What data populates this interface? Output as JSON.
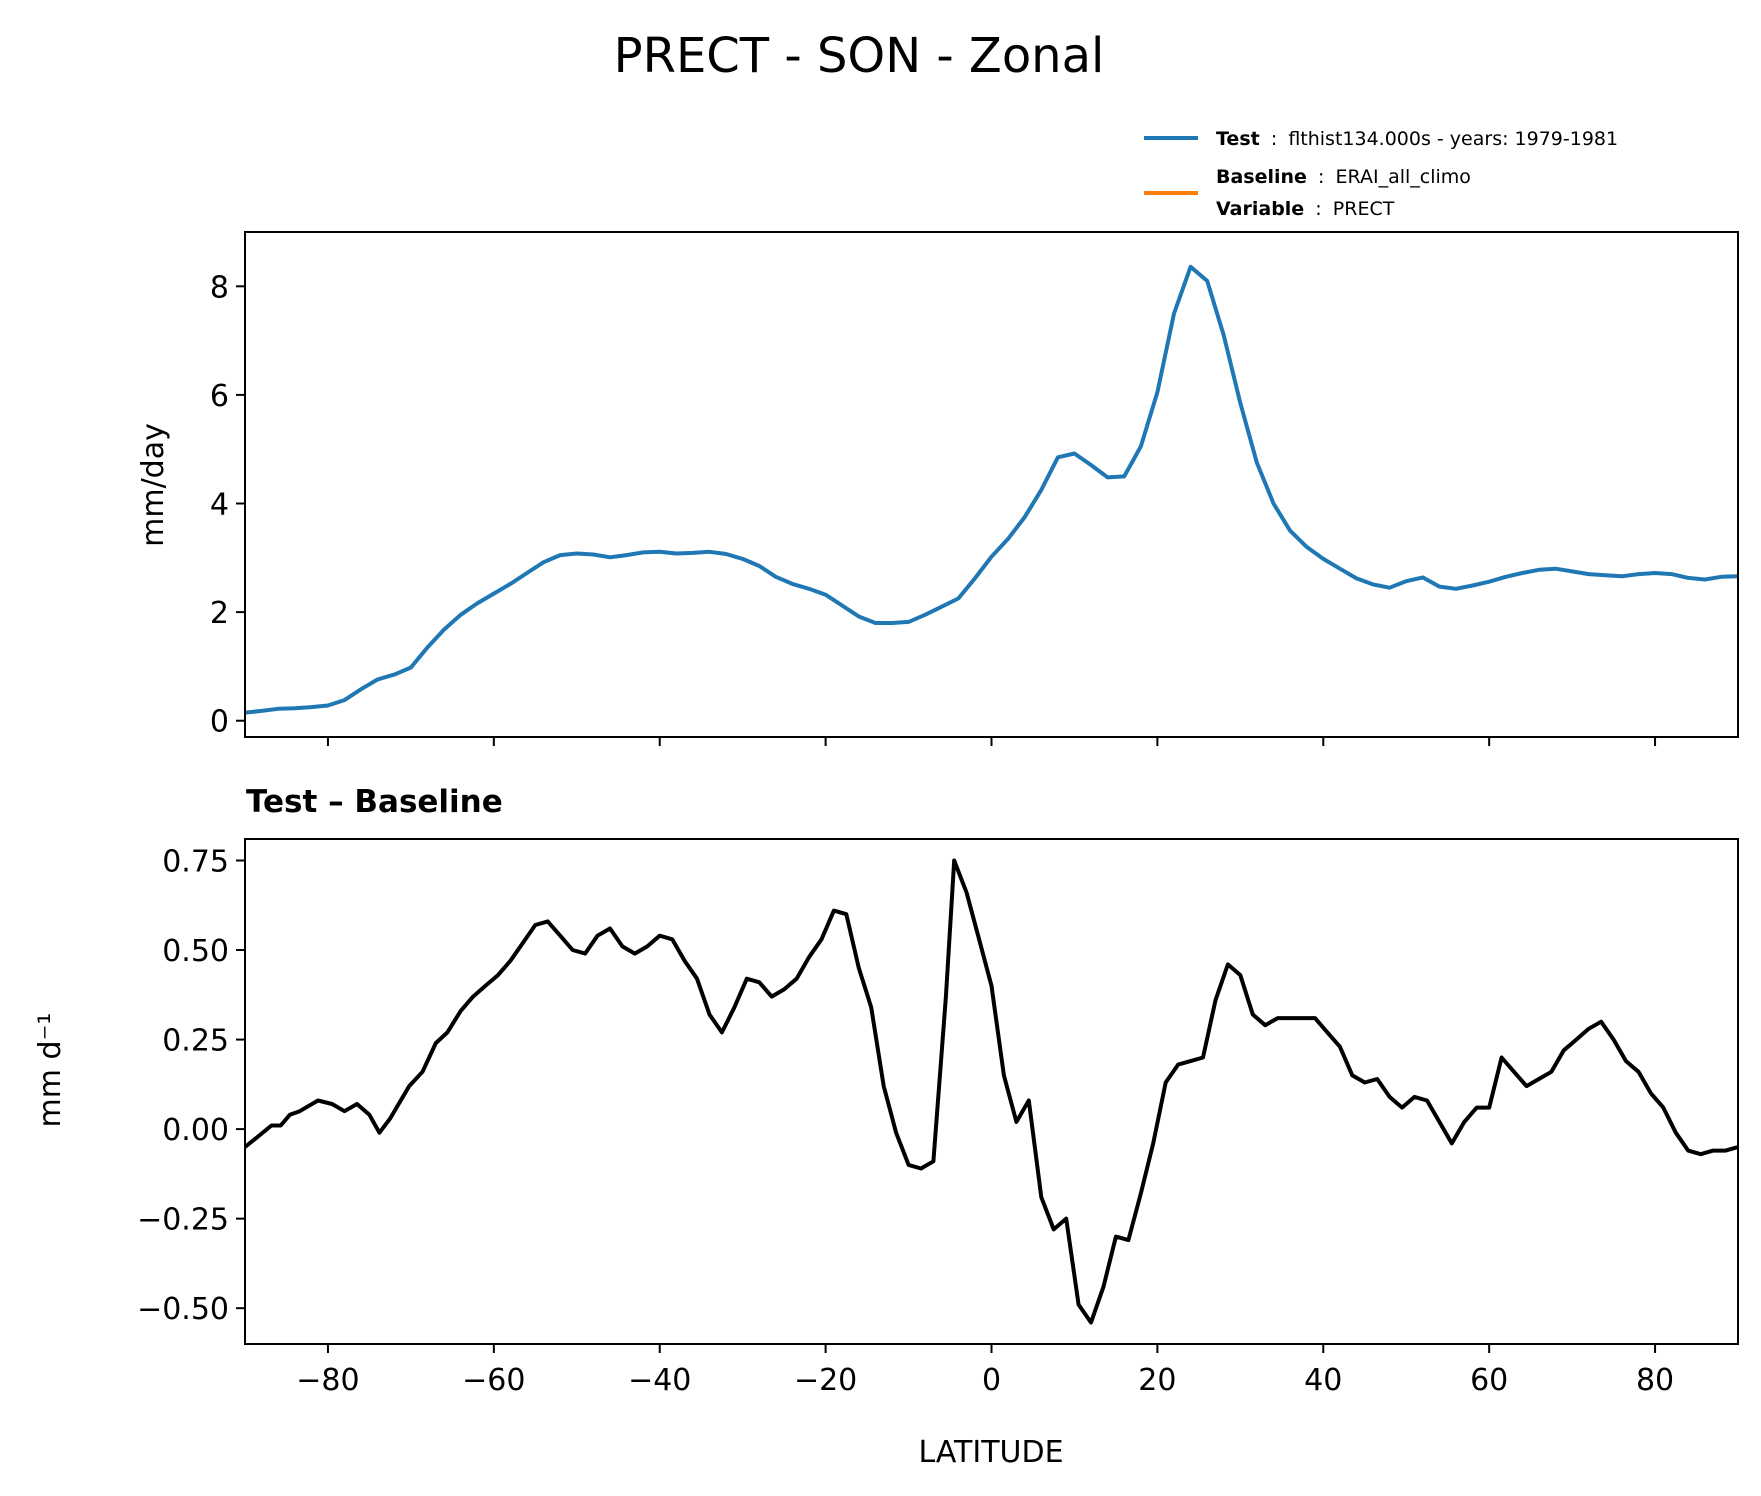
{
  "figure": {
    "title": "PRECT - SON - Zonal"
  },
  "legend": {
    "test": {
      "key": "Test",
      "sep": ":",
      "value": "flthist134.000s - years: 1979-1981"
    },
    "baseline": {
      "key": "Baseline",
      "sep": ":",
      "value": "ERAI_all_climo"
    },
    "variable": {
      "key": "Variable",
      "sep": ":",
      "value": "PRECT"
    }
  },
  "colors": {
    "test": "#1f77b4",
    "baseline": "#ff7f0e",
    "diff": "#000000"
  },
  "chart_data": [
    {
      "type": "line",
      "ylabel": "mm/day",
      "xlim": [
        -90,
        90
      ],
      "ylim": [
        -0.3,
        9.0
      ],
      "xticks": [
        -80,
        -60,
        -40,
        -20,
        0,
        20,
        40,
        60,
        80
      ],
      "yticks": [
        0,
        2,
        4,
        6,
        8
      ],
      "ytick_labels": [
        "0",
        "2",
        "4",
        "6",
        "8"
      ],
      "legend_position": "above-right",
      "series": [
        {
          "name": "Test",
          "color": "#1f77b4",
          "points": [
            [
              -90,
              0.15
            ],
            [
              -88,
              0.18
            ],
            [
              -86,
              0.22
            ],
            [
              -84,
              0.23
            ],
            [
              -82,
              0.25
            ],
            [
              -80,
              0.28
            ],
            [
              -78,
              0.38
            ],
            [
              -76,
              0.58
            ],
            [
              -74,
              0.76
            ],
            [
              -72,
              0.85
            ],
            [
              -70,
              0.98
            ],
            [
              -68,
              1.35
            ],
            [
              -66,
              1.68
            ],
            [
              -64,
              1.95
            ],
            [
              -62,
              2.16
            ],
            [
              -60,
              2.34
            ],
            [
              -58,
              2.52
            ],
            [
              -56,
              2.72
            ],
            [
              -54,
              2.92
            ],
            [
              -52,
              3.05
            ],
            [
              -50,
              3.08
            ],
            [
              -48,
              3.06
            ],
            [
              -46,
              3.01
            ],
            [
              -44,
              3.05
            ],
            [
              -42,
              3.1
            ],
            [
              -40,
              3.11
            ],
            [
              -38,
              3.08
            ],
            [
              -36,
              3.09
            ],
            [
              -34,
              3.11
            ],
            [
              -32,
              3.07
            ],
            [
              -30,
              2.98
            ],
            [
              -28,
              2.85
            ],
            [
              -26,
              2.65
            ],
            [
              -24,
              2.52
            ],
            [
              -22,
              2.43
            ],
            [
              -20,
              2.32
            ],
            [
              -18,
              2.12
            ],
            [
              -16,
              1.92
            ],
            [
              -14,
              1.8
            ],
            [
              -12,
              1.8
            ],
            [
              -10,
              1.82
            ],
            [
              -8,
              1.95
            ],
            [
              -6,
              2.1
            ],
            [
              -4,
              2.25
            ],
            [
              -2,
              2.62
            ],
            [
              0,
              3.02
            ],
            [
              2,
              3.35
            ],
            [
              4,
              3.75
            ],
            [
              6,
              4.25
            ],
            [
              8,
              4.85
            ],
            [
              10,
              4.92
            ],
            [
              12,
              4.71
            ],
            [
              14,
              4.48
            ],
            [
              16,
              4.5
            ],
            [
              18,
              5.05
            ],
            [
              20,
              6.05
            ],
            [
              22,
              7.5
            ],
            [
              24,
              8.36
            ],
            [
              26,
              8.1
            ],
            [
              28,
              7.1
            ],
            [
              30,
              5.85
            ],
            [
              32,
              4.75
            ],
            [
              34,
              4.0
            ],
            [
              36,
              3.5
            ],
            [
              38,
              3.2
            ],
            [
              40,
              2.98
            ],
            [
              42,
              2.8
            ],
            [
              44,
              2.62
            ],
            [
              46,
              2.51
            ],
            [
              48,
              2.45
            ],
            [
              50,
              2.57
            ],
            [
              52,
              2.64
            ],
            [
              54,
              2.47
            ],
            [
              56,
              2.43
            ],
            [
              58,
              2.49
            ],
            [
              60,
              2.56
            ],
            [
              62,
              2.65
            ],
            [
              64,
              2.72
            ],
            [
              66,
              2.78
            ],
            [
              68,
              2.8
            ],
            [
              70,
              2.75
            ],
            [
              72,
              2.7
            ],
            [
              74,
              2.68
            ],
            [
              76,
              2.66
            ],
            [
              78,
              2.7
            ],
            [
              80,
              2.72
            ],
            [
              82,
              2.7
            ],
            [
              84,
              2.63
            ],
            [
              86,
              2.6
            ],
            [
              88,
              2.65
            ],
            [
              90,
              2.66
            ]
          ]
        },
        {
          "name": "Baseline",
          "color": "#ff7f0e",
          "points": []
        }
      ]
    },
    {
      "type": "line",
      "title": "Test – Baseline",
      "xlabel": "LATITUDE",
      "ylabel": "mm d⁻¹",
      "xlim": [
        -90,
        90
      ],
      "ylim": [
        -0.6,
        0.81
      ],
      "xticks": [
        -80,
        -60,
        -40,
        -20,
        0,
        20,
        40,
        60,
        80
      ],
      "xtick_labels": [
        "−80",
        "−60",
        "−40",
        "−20",
        "0",
        "20",
        "40",
        "60",
        "80"
      ],
      "yticks": [
        0.75,
        0.5,
        0.25,
        0.0,
        -0.25,
        -0.5
      ],
      "ytick_labels": [
        "0.75",
        "0.50",
        "0.25",
        "0.00",
        "−0.25",
        "−0.50"
      ],
      "series": [
        {
          "color": "#000000",
          "points": [
            [
              -90.0,
              -0.05
            ],
            [
              -88.4,
              -0.02
            ],
            [
              -86.8,
              0.01
            ],
            [
              -85.7,
              0.01
            ],
            [
              -84.6,
              0.04
            ],
            [
              -83.4,
              0.05
            ],
            [
              -81.2,
              0.08
            ],
            [
              -79.5,
              0.07
            ],
            [
              -78.0,
              0.05
            ],
            [
              -76.5,
              0.07
            ],
            [
              -75.0,
              0.04
            ],
            [
              -73.8,
              -0.01
            ],
            [
              -72.5,
              0.03
            ],
            [
              -70.2,
              0.12
            ],
            [
              -68.6,
              0.16
            ],
            [
              -67.0,
              0.24
            ],
            [
              -65.6,
              0.27
            ],
            [
              -64.0,
              0.33
            ],
            [
              -62.5,
              0.37
            ],
            [
              -61.0,
              0.4
            ],
            [
              -59.5,
              0.43
            ],
            [
              -58.0,
              0.47
            ],
            [
              -56.5,
              0.52
            ],
            [
              -55.0,
              0.57
            ],
            [
              -53.5,
              0.58
            ],
            [
              -52.0,
              0.54
            ],
            [
              -50.5,
              0.5
            ],
            [
              -49.0,
              0.49
            ],
            [
              -47.5,
              0.54
            ],
            [
              -46.0,
              0.56
            ],
            [
              -44.5,
              0.51
            ],
            [
              -43.0,
              0.49
            ],
            [
              -41.5,
              0.51
            ],
            [
              -40.0,
              0.54
            ],
            [
              -38.5,
              0.53
            ],
            [
              -37.0,
              0.47
            ],
            [
              -35.5,
              0.42
            ],
            [
              -34.0,
              0.32
            ],
            [
              -32.5,
              0.27
            ],
            [
              -31.0,
              0.34
            ],
            [
              -29.5,
              0.42
            ],
            [
              -28.0,
              0.41
            ],
            [
              -26.5,
              0.37
            ],
            [
              -25.0,
              0.39
            ],
            [
              -23.5,
              0.42
            ],
            [
              -22.0,
              0.48
            ],
            [
              -20.5,
              0.53
            ],
            [
              -19.0,
              0.61
            ],
            [
              -17.5,
              0.6
            ],
            [
              -16.0,
              0.45
            ],
            [
              -14.5,
              0.34
            ],
            [
              -13.0,
              0.12
            ],
            [
              -11.5,
              -0.01
            ],
            [
              -10.0,
              -0.1
            ],
            [
              -8.5,
              -0.11
            ],
            [
              -7.0,
              -0.09
            ],
            [
              -5.5,
              0.37
            ],
            [
              -4.5,
              0.75
            ],
            [
              -3.0,
              0.66
            ],
            [
              -1.5,
              0.53
            ],
            [
              0.0,
              0.4
            ],
            [
              1.5,
              0.15
            ],
            [
              3.0,
              0.02
            ],
            [
              4.5,
              0.08
            ],
            [
              6.0,
              -0.19
            ],
            [
              7.5,
              -0.28
            ],
            [
              9.0,
              -0.25
            ],
            [
              10.5,
              -0.49
            ],
            [
              12.0,
              -0.54
            ],
            [
              13.5,
              -0.44
            ],
            [
              15.0,
              -0.3
            ],
            [
              16.5,
              -0.31
            ],
            [
              18.0,
              -0.18
            ],
            [
              19.5,
              -0.04
            ],
            [
              21.0,
              0.13
            ],
            [
              22.5,
              0.18
            ],
            [
              24.0,
              0.19
            ],
            [
              25.5,
              0.2
            ],
            [
              27.0,
              0.36
            ],
            [
              28.5,
              0.46
            ],
            [
              30.0,
              0.43
            ],
            [
              31.5,
              0.32
            ],
            [
              33.0,
              0.29
            ],
            [
              34.5,
              0.31
            ],
            [
              36.0,
              0.31
            ],
            [
              37.5,
              0.31
            ],
            [
              39.0,
              0.31
            ],
            [
              40.5,
              0.27
            ],
            [
              42.0,
              0.23
            ],
            [
              43.5,
              0.15
            ],
            [
              45.0,
              0.13
            ],
            [
              46.5,
              0.14
            ],
            [
              48.0,
              0.09
            ],
            [
              49.5,
              0.06
            ],
            [
              51.0,
              0.09
            ],
            [
              52.5,
              0.08
            ],
            [
              54.0,
              0.02
            ],
            [
              55.5,
              -0.04
            ],
            [
              57.0,
              0.02
            ],
            [
              58.5,
              0.06
            ],
            [
              60.0,
              0.06
            ],
            [
              61.5,
              0.2
            ],
            [
              63.0,
              0.16
            ],
            [
              64.5,
              0.12
            ],
            [
              66.0,
              0.14
            ],
            [
              67.5,
              0.16
            ],
            [
              69.0,
              0.22
            ],
            [
              70.5,
              0.25
            ],
            [
              72.0,
              0.28
            ],
            [
              73.5,
              0.3
            ],
            [
              75.0,
              0.25
            ],
            [
              76.5,
              0.19
            ],
            [
              78.0,
              0.16
            ],
            [
              79.5,
              0.1
            ],
            [
              81.0,
              0.06
            ],
            [
              82.5,
              -0.01
            ],
            [
              84.0,
              -0.06
            ],
            [
              85.5,
              -0.07
            ],
            [
              87.0,
              -0.06
            ],
            [
              88.5,
              -0.06
            ],
            [
              90.0,
              -0.05
            ]
          ]
        }
      ]
    }
  ]
}
